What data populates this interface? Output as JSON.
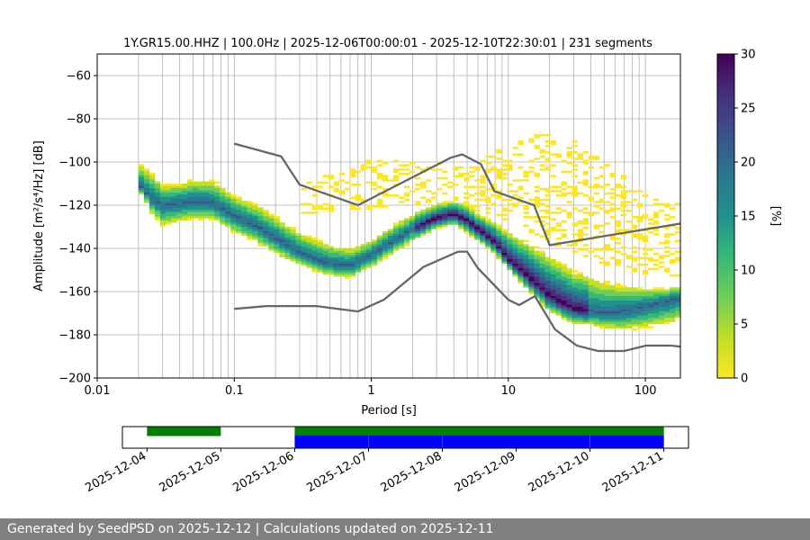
{
  "chart_data": [
    {
      "type": "heatmap",
      "title": "1Y.GR15.00.HHZ | 100.0Hz | 2025-12-06T00:00:01 - 2025-12-10T22:30:01 | 231 segments",
      "xlabel": "Period [s]",
      "ylabel": "Amplitude [m²/s⁴/Hz] [dB]",
      "xscale": "log",
      "xlim": [
        0.01,
        180
      ],
      "ylim": [
        -200,
        -50
      ],
      "xticks": [
        "0.01",
        "0.1",
        "1",
        "10",
        "100"
      ],
      "yticks": [
        "−60",
        "−80",
        "−100",
        "−120",
        "−140",
        "−160",
        "−180",
        "−200"
      ],
      "grid": "vertical lines at minor and major period ticks, horizontal lines at every 20 dB",
      "colorbar": {
        "label": "[%]",
        "range": [
          0,
          30
        ],
        "ticks": [
          "0",
          "5",
          "10",
          "15",
          "20",
          "25",
          "30"
        ],
        "colormap": "viridis_r"
      },
      "density_mode": {
        "x": [
          0.02,
          0.025,
          0.03,
          0.04,
          0.05,
          0.07,
          0.1,
          0.15,
          0.2,
          0.3,
          0.4,
          0.5,
          0.7,
          1,
          1.5,
          2,
          3,
          4,
          5,
          6,
          8,
          10,
          15,
          20,
          30,
          50,
          70,
          100,
          150,
          180
        ],
        "y": [
          -110,
          -117,
          -120,
          -119,
          -118,
          -119,
          -125,
          -130,
          -135,
          -142,
          -145,
          -147,
          -148,
          -143,
          -136,
          -131,
          -126,
          -124,
          -127,
          -131,
          -137,
          -145,
          -155,
          -162,
          -168,
          -170,
          -169,
          -167,
          -164,
          -163
        ]
      },
      "density_spread": {
        "upper": [
          -100,
          -105,
          -110,
          -110,
          -108,
          -108,
          -115,
          -120,
          -125,
          -132,
          -136,
          -138,
          -140,
          -136,
          -128,
          -124,
          -119,
          -118,
          -120,
          -124,
          -128,
          -132,
          -138,
          -143,
          -150,
          -155,
          -157,
          -158,
          -158,
          -158
        ],
        "lower": [
          -113,
          -124,
          -130,
          -128,
          -127,
          -127,
          -133,
          -138,
          -143,
          -148,
          -151,
          -153,
          -154,
          -149,
          -142,
          -137,
          -131,
          -129,
          -133,
          -137,
          -143,
          -150,
          -162,
          -170,
          -175,
          -177,
          -178,
          -177,
          -175,
          -173
        ]
      },
      "outlier_band": {
        "x": [
          0.3,
          0.5,
          1,
          1.5,
          3,
          5,
          8,
          10,
          15,
          20,
          30,
          50,
          100,
          180
        ],
        "high": [
          -108,
          -104,
          -99,
          -98,
          -100,
          -103,
          -95,
          -92,
          -88,
          -86,
          -88,
          -100,
          -112,
          -120
        ],
        "low": [
          -125,
          -123,
          -122,
          -120,
          -120,
          -122,
          -125,
          -128,
          -133,
          -138,
          -142,
          -148,
          -152,
          -155
        ]
      },
      "model_upper": {
        "x": [
          0.1,
          0.22,
          0.3,
          0.8,
          3.8,
          4.6,
          6.3,
          7.9,
          15.4,
          20,
          180
        ],
        "y": [
          -91.5,
          -97.4,
          -110.5,
          -120,
          -98,
          -96.5,
          -101,
          -113.5,
          -120,
          -138.5,
          -128.5
        ]
      },
      "model_lower": {
        "x": [
          0.1,
          0.17,
          0.4,
          0.8,
          1.24,
          2.4,
          4.3,
          5,
          6,
          10,
          12,
          15.6,
          21.9,
          31.6,
          45,
          70,
          101,
          154,
          180
        ],
        "y": [
          -168,
          -166.7,
          -166.7,
          -169.2,
          -163.7,
          -148.6,
          -141.5,
          -141.5,
          -149.2,
          -163.8,
          -166.2,
          -162.1,
          -177.5,
          -185,
          -187.5,
          -187.5,
          -185,
          -185,
          -185.5
        ]
      }
    },
    {
      "type": "timeline",
      "xlim": [
        "2025-12-03T16:00",
        "2025-12-11T08:00"
      ],
      "xticks": [
        "2025-12-04",
        "2025-12-05",
        "2025-12-06",
        "2025-12-07",
        "2025-12-08",
        "2025-12-09",
        "2025-12-10",
        "2025-12-11"
      ],
      "series": [
        {
          "color": "#008000",
          "segments": [
            [
              "2025-12-04T00:00",
              "2025-12-05T00:00"
            ],
            [
              "2025-12-06T00:00",
              "2025-12-11T00:00"
            ]
          ]
        },
        {
          "color": "#0000ff",
          "segments": [
            [
              "2025-12-06T00:00",
              "2025-12-06T23:59"
            ],
            [
              "2025-12-07T00:03",
              "2025-12-07T23:59"
            ],
            [
              "2025-12-08T00:03",
              "2025-12-09T23:59"
            ],
            [
              "2025-12-10T00:03",
              "2025-12-11T00:00"
            ]
          ]
        }
      ]
    }
  ],
  "footer": {
    "text": "Generated by SeedPSD on 2025-12-12 | Calculations updated on 2025-12-11"
  }
}
